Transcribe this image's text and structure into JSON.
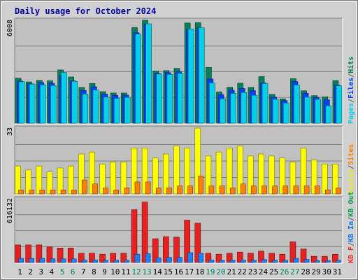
{
  "chart_data": {
    "type": "bar",
    "title": "Daily usage for October 2024",
    "categories": [
      "1",
      "2",
      "3",
      "4",
      "5",
      "6",
      "7",
      "8",
      "9",
      "10",
      "11",
      "12",
      "13",
      "14",
      "15",
      "16",
      "17",
      "18",
      "19",
      "20",
      "21",
      "22",
      "23",
      "24",
      "25",
      "26",
      "27",
      "28",
      "29",
      "30",
      "31"
    ],
    "weekend_days": [
      "5",
      "6",
      "12",
      "13",
      "19",
      "20",
      "26",
      "27"
    ],
    "panels": [
      {
        "id": "hits",
        "max_label": "6008",
        "ymax": 6008,
        "legend": [
          {
            "label": "Pages",
            "color": "#00d0e8"
          },
          {
            "label": "/",
            "color": "#606060"
          },
          {
            "label": "Files",
            "color": "#0040ff"
          },
          {
            "label": "/",
            "color": "#606060"
          },
          {
            "label": "Hits",
            "color": "#00805c"
          }
        ],
        "series": [
          {
            "name": "Hits",
            "color": "#00805c",
            "values": [
              2630,
              2410,
              2500,
              2480,
              3110,
              2700,
              2090,
              2320,
              1840,
              1760,
              1760,
              5580,
              6008,
              3050,
              3070,
              3200,
              5850,
              5870,
              3260,
              1830,
              2100,
              2340,
              2090,
              2720,
              1680,
              1420,
              2600,
              1890,
              1610,
              1540,
              2490
            ]
          },
          {
            "name": "Files",
            "color": "#0040ff",
            "values": [
              2460,
              2300,
              2370,
              2330,
              2790,
              2470,
              1910,
              2120,
              1700,
              1620,
              1640,
              5280,
              5780,
              2910,
              2950,
              3010,
              5500,
              5560,
              2580,
              1670,
              1930,
              2030,
              1900,
              2360,
              1520,
              1320,
              2430,
              1740,
              1510,
              1370,
              2220
            ]
          },
          {
            "name": "Pages",
            "color": "#00d0e8",
            "values": [
              2420,
              2280,
              2240,
              2200,
              2960,
              2440,
              1700,
              1950,
              1530,
              1450,
              1510,
              5200,
              5800,
              2870,
              2850,
              2910,
              5500,
              5570,
              2350,
              1430,
              1740,
              1790,
              1630,
              2320,
              1400,
              1180,
              2230,
              1520,
              1390,
              1020,
              2180
            ]
          }
        ]
      },
      {
        "id": "visits",
        "max_label": "33",
        "ymax": 33,
        "legend": [
          {
            "label": "Visits",
            "color": "#e8e800"
          },
          {
            "label": "/",
            "color": "#606060"
          },
          {
            "label": "Sites",
            "color": "#ff8000"
          }
        ],
        "series": [
          {
            "name": "Visits",
            "color": "#ffff00",
            "values": [
              14,
              12,
              14,
              11,
              13,
              14,
              20,
              21,
              15,
              16,
              16,
              23,
              23,
              18,
              20,
              24,
              23,
              33,
              19,
              21,
              23,
              24,
              19,
              20,
              19,
              18,
              16,
              23,
              17,
              15,
              15
            ]
          },
          {
            "name": "Sites",
            "color": "#ff8000",
            "values": [
              2,
              2,
              2,
              2,
              2,
              2,
              7,
              5,
              3,
              2,
              3,
              6,
              6,
              3,
              3,
              4,
              4,
              9,
              4,
              4,
              3,
              5,
              4,
              4,
              4,
              4,
              4,
              4,
              4,
              2,
              3
            ]
          }
        ]
      },
      {
        "id": "kbytes",
        "max_label": "616132",
        "ymax": 616132,
        "legend": [
          {
            "label": "KB F",
            "color": "#ff2020"
          },
          {
            "label": "/",
            "color": "#606060"
          },
          {
            "label": "KB In",
            "color": "#0070ff"
          },
          {
            "label": "/",
            "color": "#606060"
          },
          {
            "label": "KB Out",
            "color": "#00a050"
          }
        ],
        "series": [
          {
            "name": "KB F",
            "color": "#e82020",
            "values": [
              170000,
              170000,
              170000,
              150000,
              140000,
              140000,
              90000,
              90000,
              80000,
              90000,
              90000,
              510000,
              585000,
              230000,
              250000,
              245000,
              410000,
              380000,
              90000,
              80000,
              90000,
              100000,
              90000,
              110000,
              90000,
              80000,
              200000,
              130000,
              60000,
              60000,
              80000
            ]
          },
          {
            "name": "KB In",
            "color": "#2080ff",
            "values": [
              40000,
              40000,
              40000,
              35000,
              35000,
              35000,
              25000,
              25000,
              20000,
              22000,
              22000,
              80000,
              85000,
              45000,
              50000,
              50000,
              95000,
              90000,
              25000,
              20000,
              22000,
              25000,
              22000,
              28000,
              22000,
              20000,
              40000,
              30000,
              18000,
              18000,
              20000
            ]
          }
        ]
      }
    ]
  }
}
